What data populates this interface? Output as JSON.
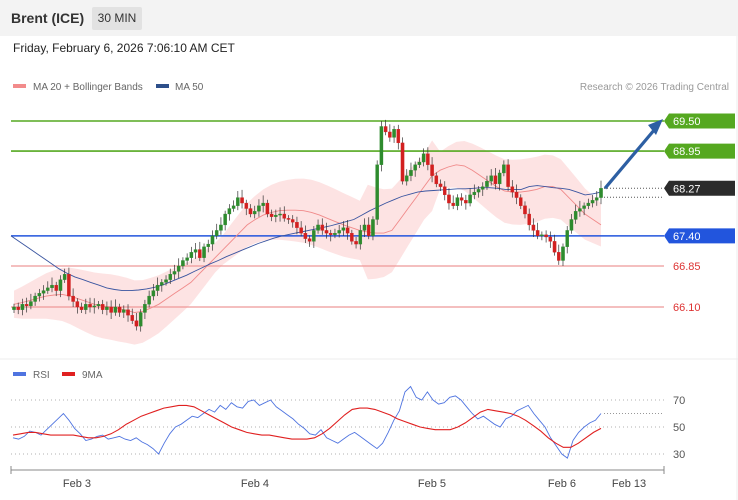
{
  "header": {
    "instrument": "Brent (ICE)",
    "timeframe": "30 MIN"
  },
  "datetime": "Friday, February 6, 2026 7:06:10 AM CET",
  "legend": {
    "items": [
      {
        "label": "MA 20 + Bollinger Bands",
        "color": "#f28b8b"
      },
      {
        "label": "MA 50",
        "color": "#2d4f8a"
      }
    ],
    "copyright": "Research © 2026 Trading Central"
  },
  "colors": {
    "up": "#2e8b2e",
    "down": "#d22020",
    "resistance": "#55a820",
    "pivot": "#2255dd",
    "support": "#ee9999",
    "band": "#fde0e0",
    "arrow": "#2d5fa3"
  },
  "chart_data": [
    {
      "type": "candlestick",
      "title": "Brent (ICE)",
      "timeframe": "30 MIN",
      "x_ticks": [
        "Feb 3",
        "Feb 4",
        "Feb 5",
        "Feb 6",
        "Feb 13"
      ],
      "ylim": [
        65.5,
        69.9
      ],
      "levels": [
        {
          "value": 69.5,
          "label": "69.50",
          "kind": "resistance"
        },
        {
          "value": 68.95,
          "label": "68.95",
          "kind": "resistance"
        },
        {
          "value": 68.27,
          "label": "68.27",
          "kind": "last"
        },
        {
          "value": 67.4,
          "label": "67.40",
          "kind": "pivot"
        },
        {
          "value": 66.85,
          "label": "66.85",
          "kind": "support"
        },
        {
          "value": 66.1,
          "label": "66.10",
          "kind": "support"
        }
      ],
      "close": [
        66.1,
        66.05,
        66.15,
        66.12,
        66.2,
        66.3,
        66.35,
        66.4,
        66.45,
        66.5,
        66.4,
        66.6,
        66.7,
        66.3,
        66.2,
        66.1,
        66.05,
        66.15,
        66.1,
        66.12,
        66.15,
        66.05,
        66.1,
        66.0,
        66.1,
        66.0,
        66.05,
        65.95,
        65.85,
        65.75,
        66.0,
        66.15,
        66.3,
        66.4,
        66.5,
        66.55,
        66.6,
        66.7,
        66.75,
        66.85,
        66.95,
        67.0,
        67.1,
        67.15,
        67.0,
        67.2,
        67.25,
        67.4,
        67.5,
        67.6,
        67.8,
        67.9,
        67.95,
        68.1,
        68.0,
        67.9,
        67.8,
        67.85,
        67.95,
        68.0,
        67.8,
        67.75,
        67.78,
        67.8,
        67.72,
        67.7,
        67.65,
        67.55,
        67.45,
        67.35,
        67.3,
        67.5,
        67.6,
        67.5,
        67.45,
        67.42,
        67.45,
        67.5,
        67.55,
        67.45,
        67.3,
        67.25,
        67.5,
        67.6,
        67.4,
        67.7,
        68.7,
        69.4,
        69.3,
        69.2,
        69.35,
        69.1,
        68.4,
        68.5,
        68.6,
        68.7,
        68.75,
        68.9,
        68.7,
        68.5,
        68.35,
        68.3,
        68.15,
        68.0,
        67.95,
        68.1,
        68.05,
        68.0,
        68.15,
        68.2,
        68.25,
        68.3,
        68.4,
        68.5,
        68.35,
        68.55,
        68.7,
        68.3,
        68.2,
        68.1,
        67.95,
        67.8,
        67.6,
        67.5,
        67.4,
        67.42,
        67.38,
        67.3,
        67.1,
        66.95,
        67.2,
        67.5,
        67.7,
        67.85,
        67.9,
        67.95,
        68.0,
        68.05,
        68.1,
        68.27
      ],
      "ma20": [
        66.15,
        66.18,
        66.22,
        66.26,
        66.3,
        66.32,
        66.33,
        66.3,
        66.25,
        66.2,
        66.15,
        66.12,
        66.1,
        66.07,
        66.04,
        66.0,
        66.02,
        66.08,
        66.15,
        66.25,
        66.35,
        66.45,
        66.55,
        66.7,
        66.85,
        67.0,
        67.15,
        67.3,
        67.45,
        67.6,
        67.7,
        67.78,
        67.83,
        67.86,
        67.87,
        67.87,
        67.86,
        67.83,
        67.78,
        67.72,
        67.66,
        67.6,
        67.55,
        67.5,
        67.47,
        67.45,
        67.45,
        67.5,
        67.7,
        67.9,
        68.1,
        68.3,
        68.5,
        68.6,
        68.66,
        68.7,
        68.68,
        68.6,
        68.5,
        68.4,
        68.3,
        68.22,
        68.2,
        68.2,
        68.22,
        68.25,
        68.3,
        68.3,
        68.25,
        68.1,
        67.95,
        67.8,
        67.7,
        67.6
      ],
      "ma50": [
        67.4,
        67.3,
        67.2,
        67.1,
        67.0,
        66.9,
        66.8,
        66.72,
        66.65,
        66.6,
        66.55,
        66.5,
        66.45,
        66.42,
        66.4,
        66.4,
        66.41,
        66.43,
        66.46,
        66.5,
        66.56,
        66.62,
        66.68,
        66.75,
        66.82,
        66.89,
        66.95,
        67.02,
        67.08,
        67.14,
        67.2,
        67.26,
        67.31,
        67.36,
        67.4,
        67.43,
        67.46,
        67.49,
        67.52,
        67.55,
        67.58,
        67.62,
        67.66,
        67.7,
        67.78,
        67.86,
        67.93,
        68.0,
        68.06,
        68.12,
        68.16,
        68.2,
        68.22,
        68.23,
        68.24,
        68.25,
        68.26,
        68.26,
        68.27,
        68.28,
        68.28,
        68.27,
        68.25,
        68.25,
        68.25,
        68.3,
        68.32,
        68.3,
        68.28,
        68.27,
        68.25,
        68.2,
        68.15,
        68.17,
        68.2
      ]
    },
    {
      "type": "line",
      "title": "RSI",
      "series": [
        {
          "name": "RSI",
          "color": "#4f74e0",
          "values": [
            42,
            41,
            43,
            47,
            46,
            44,
            48,
            52,
            56,
            60,
            55,
            49,
            45,
            40,
            41,
            43,
            44,
            41,
            42,
            43,
            41,
            40,
            42,
            39,
            37,
            34,
            30,
            38,
            45,
            50,
            52,
            55,
            58,
            57,
            60,
            63,
            61,
            66,
            63,
            68,
            65,
            64,
            69,
            70,
            66,
            68,
            70,
            65,
            62,
            59,
            56,
            52,
            49,
            45,
            44,
            48,
            42,
            40,
            38,
            41,
            44,
            46,
            43,
            40,
            37,
            34,
            38,
            46,
            55,
            62,
            76,
            80,
            72,
            70,
            76,
            70,
            67,
            68,
            72,
            73,
            70,
            65,
            60,
            56,
            58,
            55,
            52,
            50,
            56,
            58,
            62,
            64,
            66,
            60,
            55,
            50,
            42,
            36,
            30,
            27,
            40,
            46,
            50,
            53,
            55,
            60
          ]
        },
        {
          "name": "9MA",
          "color": "#e02020",
          "values": [
            44,
            45,
            46,
            46,
            45,
            44,
            44,
            44,
            44,
            43,
            42,
            42,
            43,
            45,
            48,
            52,
            55,
            58,
            60,
            62,
            64,
            65,
            66,
            66,
            65,
            62,
            59,
            56,
            53,
            50,
            48,
            46,
            45,
            44,
            44,
            43,
            42,
            41,
            41,
            41,
            42,
            45,
            49,
            54,
            59,
            63,
            64,
            64,
            63,
            61,
            59,
            56,
            54,
            52,
            50,
            49,
            48,
            48,
            48,
            50,
            53,
            57,
            61,
            63,
            62,
            61,
            60,
            58,
            55,
            51,
            47,
            42,
            38,
            35,
            35,
            38,
            42,
            46,
            49
          ]
        }
      ],
      "ylim": [
        20,
        80
      ],
      "y_ticks": [
        70,
        50,
        30
      ]
    }
  ]
}
